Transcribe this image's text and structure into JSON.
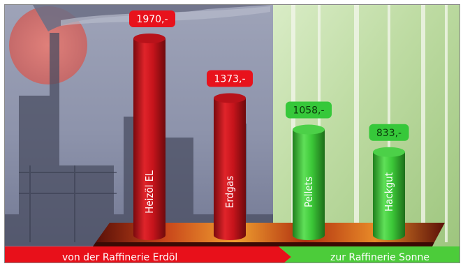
{
  "chart_data": {
    "type": "bar",
    "categories": [
      "Heizöl EL",
      "Erdgas",
      "Pellets",
      "Hackgut"
    ],
    "values": [
      1970,
      1373,
      1058,
      833
    ],
    "value_labels": [
      "1970,-",
      "1373,-",
      "1058,-",
      "833,-"
    ],
    "title": "",
    "xlabel": "",
    "ylabel": "",
    "ylim": [
      0,
      2200
    ],
    "grid": false,
    "colors": [
      "#c8141c",
      "#c8141c",
      "#3cc838",
      "#3cc838"
    ],
    "label_colors": [
      "#e8121c",
      "#e8121c",
      "#36c83a",
      "#36c83a"
    ]
  },
  "footer": {
    "left_label": "von der Raffinerie Erdöl",
    "right_label": "zur Raffinerie Sonne",
    "left_color": "#e8101a",
    "right_color": "#4ccc3a"
  }
}
